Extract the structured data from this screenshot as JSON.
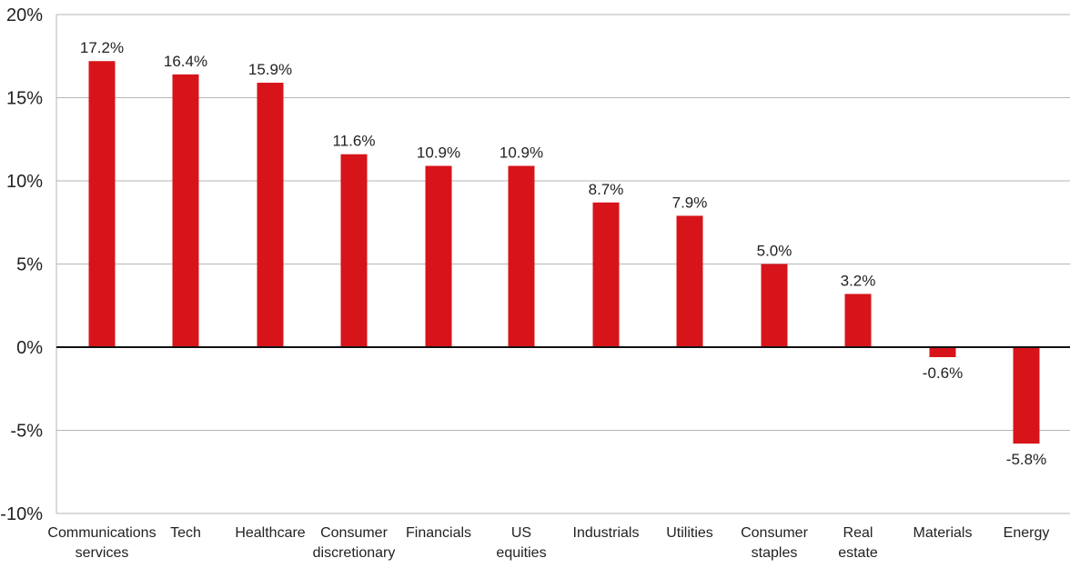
{
  "chart_data": {
    "type": "bar",
    "title": "",
    "xlabel": "",
    "ylabel": "",
    "ylim": [
      -10,
      20
    ],
    "yticks": [
      20,
      15,
      10,
      5,
      0,
      -5,
      -10
    ],
    "ytick_labels": [
      "20%",
      "15%",
      "10%",
      "5%",
      "0%",
      "-5%",
      "-10%"
    ],
    "grid": true,
    "legend": "none",
    "bar_color": "#d7141a",
    "categories": [
      [
        "Communications",
        "services"
      ],
      [
        "Tech"
      ],
      [
        "Healthcare"
      ],
      [
        "Consumer",
        "discretionary"
      ],
      [
        "Financials"
      ],
      [
        "US",
        "equities"
      ],
      [
        "Industrials"
      ],
      [
        "Utilities"
      ],
      [
        "Consumer",
        "staples"
      ],
      [
        "Real",
        "estate"
      ],
      [
        "Materials"
      ],
      [
        "Energy"
      ]
    ],
    "values": [
      17.2,
      16.4,
      15.9,
      11.6,
      10.9,
      10.9,
      8.7,
      7.9,
      5.0,
      3.2,
      -0.6,
      -5.8
    ],
    "data_labels": [
      "17.2%",
      "16.4%",
      "15.9%",
      "11.6%",
      "10.9%",
      "10.9%",
      "8.7%",
      "7.9%",
      "5.0%",
      "3.2%",
      "-0.6%",
      "-5.8%"
    ]
  }
}
